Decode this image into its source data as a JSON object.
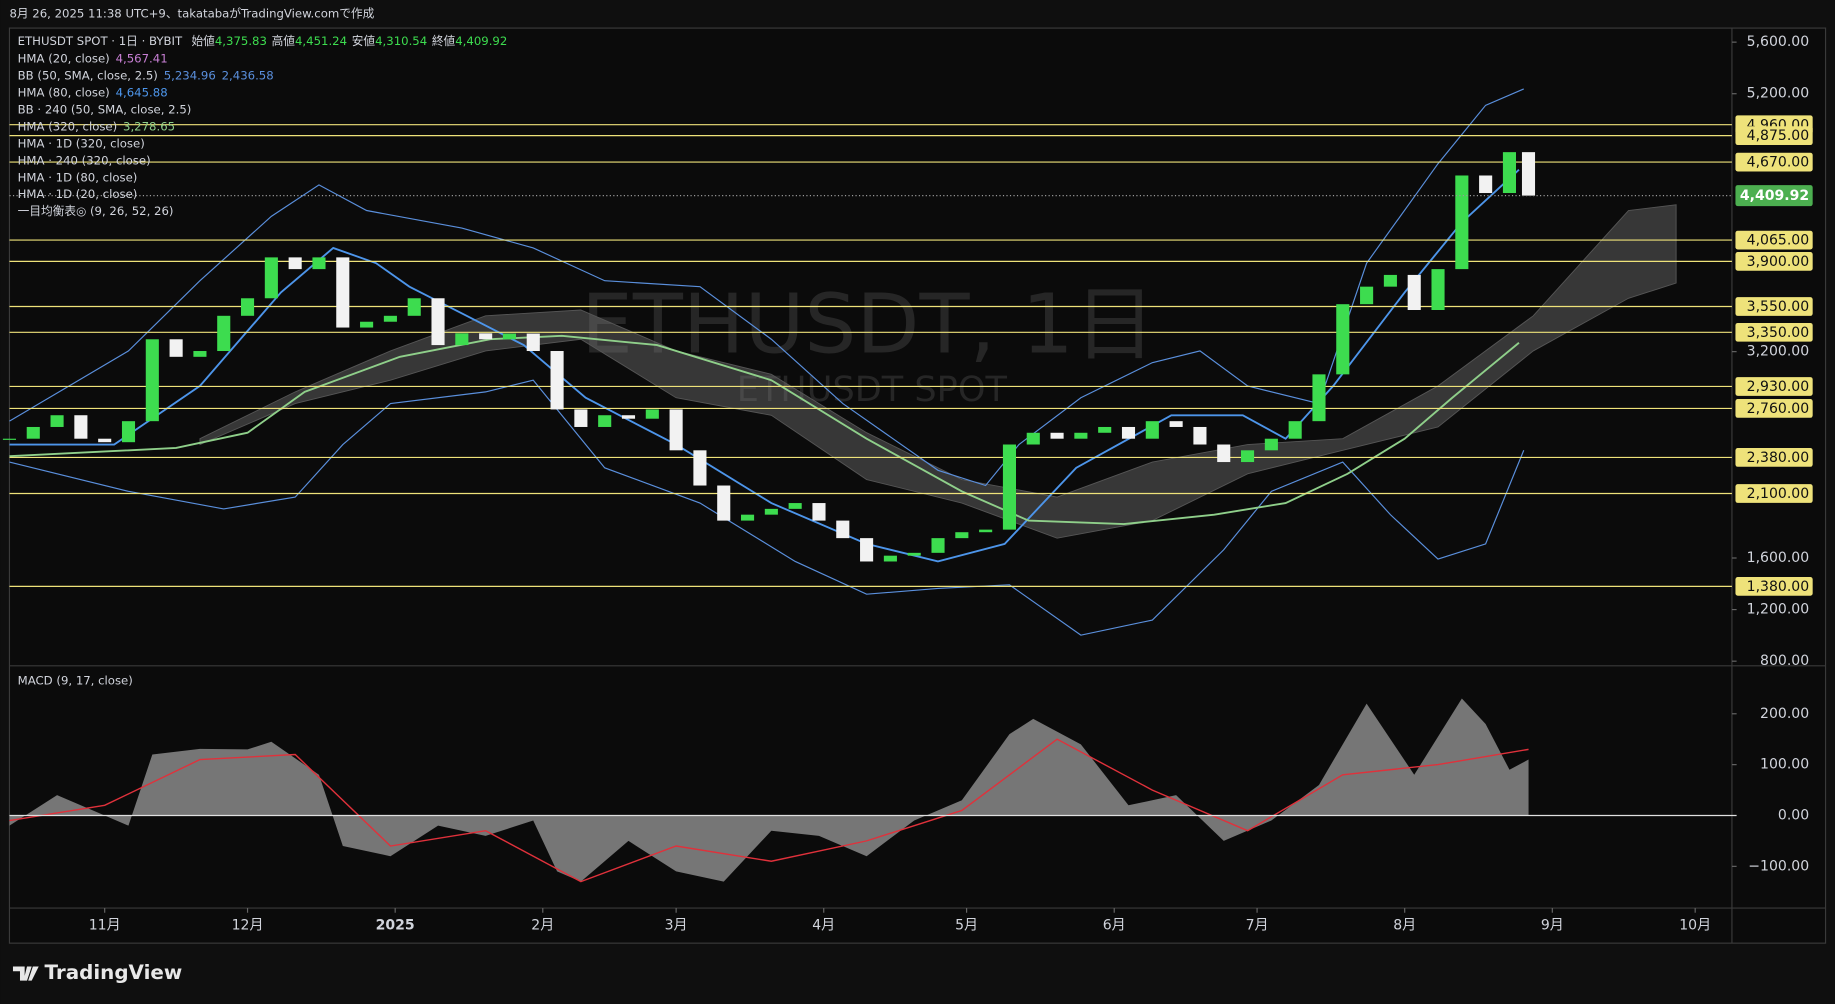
{
  "header": {
    "text": "8月 26, 2025 11:38 UTC+9、takatabaがTradingView.comで作成"
  },
  "footer": {
    "brand": "TradingView"
  },
  "chart_data": {
    "type": "candlestick",
    "symbol": "ETHUSDT SPOT · 1日 · BYBIT",
    "ohlc": [
      {
        "label": "始値",
        "value": "4,375.83"
      },
      {
        "label": "高値",
        "value": "4,451.24"
      },
      {
        "label": "安値",
        "value": "4,310.54"
      },
      {
        "label": "終値",
        "value": "4,409.92"
      }
    ],
    "watermark": "ETHUSDT, 1日",
    "watermark_sub": "ETHUSDT SPOT",
    "up_color": "#3ddc4f",
    "down_color": "#f2f2f2",
    "xlim": [
      0,
      360
    ],
    "xticks": [
      {
        "value": 20,
        "label": "11月"
      },
      {
        "value": 50,
        "label": "12月"
      },
      81,
      {
        "value": 112,
        "label": "2月"
      },
      {
        "value": 140,
        "label": "3月"
      },
      {
        "value": 171,
        "label": "4月"
      },
      {
        "value": 201,
        "label": "5月"
      },
      {
        "value": 232,
        "label": "6月"
      },
      {
        "value": 262,
        "label": "7月"
      },
      {
        "value": 293,
        "label": "8月"
      },
      {
        "value": 324,
        "label": "9月"
      },
      {
        "value": 354,
        "label": "10月"
      }
    ],
    "xtick_year": {
      "value": 81,
      "label": "2025"
    },
    "ylim": [
      773,
      5709
    ],
    "yticks": [
      {
        "value": 5600,
        "label": "5,600.00"
      },
      {
        "value": 5200,
        "label": "5,200.00"
      },
      {
        "value": 3200,
        "label": "3,200.00"
      },
      {
        "value": 1600,
        "label": "1,600.00"
      },
      {
        "value": 1200,
        "label": "1,200.00"
      },
      {
        "value": 800,
        "label": "800.00"
      }
    ],
    "x": [
      0,
      5,
      10,
      15,
      20,
      25,
      30,
      35,
      40,
      45,
      50,
      55,
      60,
      65,
      70,
      75,
      80,
      85,
      90,
      95,
      100,
      105,
      110,
      115,
      120,
      125,
      130,
      135,
      140,
      145,
      150,
      155,
      160,
      165,
      170,
      175,
      180,
      185,
      190,
      195,
      200,
      205,
      210,
      215,
      220,
      225,
      230,
      235,
      240,
      245,
      250,
      255,
      260,
      265,
      270,
      275,
      280,
      285,
      290,
      295,
      300,
      305,
      310,
      315,
      319
    ],
    "values": [
      2525,
      2616,
      2707,
      2525,
      2498,
      2661,
      3296,
      3160,
      3205,
      3478,
      3614,
      3931,
      3840,
      3931,
      3387,
      3432,
      3478,
      3614,
      3251,
      3342,
      3296,
      3340,
      3205,
      2752,
      2616,
      2707,
      2680,
      2752,
      2435,
      2162,
      1890,
      1936,
      1981,
      2026,
      1890,
      1754,
      1573,
      1618,
      1640,
      1754,
      1800,
      1820,
      2480,
      2571,
      2525,
      2571,
      2616,
      2525,
      2661,
      2616,
      2480,
      2344,
      2435,
      2525,
      2661,
      3024,
      3568,
      3704,
      3795,
      3523,
      3840,
      4566,
      4430,
      4747,
      4409.92
    ],
    "last_price": {
      "value": 4409.92,
      "label": "4,409.92"
    },
    "last_price_color": "#4caf50",
    "level_color": "#eee27a",
    "levels": [
      {
        "value": 4960,
        "label": "4,960.00"
      },
      {
        "value": 4875,
        "label": "4,875.00"
      },
      {
        "value": 4670,
        "label": "4,670.00"
      },
      {
        "value": 4065,
        "label": "4,065.00"
      },
      {
        "value": 3900,
        "label": "3,900.00"
      },
      {
        "value": 3550,
        "label": "3,550.00"
      },
      {
        "value": 3350,
        "label": "3,350.00"
      },
      {
        "value": 2930,
        "label": "2,930.00"
      },
      {
        "value": 2760,
        "label": "2,760.00"
      },
      {
        "value": 2380,
        "label": "2,380.00"
      },
      {
        "value": 2100,
        "label": "2,100.00"
      },
      {
        "value": 1380,
        "label": "1,380.00"
      }
    ],
    "legend": [
      {
        "text": "HMA (20, close)",
        "values": [
          "4,567.41"
        ],
        "color": "#c77fd4"
      },
      {
        "text": "BB (50, SMA, close, 2.5)",
        "values": [
          "5,234.96",
          "2,436.58"
        ],
        "color": "#5a8fdc",
        "series": [
          {
            "x": [
              0,
              25,
              40,
              55,
              65,
              75,
              95,
              110,
              125,
              145,
              160,
              175,
              195,
              205,
              212,
              225,
              240,
              250,
              260,
              275,
              285,
              300,
              310,
              318
            ],
            "values": [
              2661,
              3206,
              3750,
              4249,
              4493,
              4294,
              4158,
              4004,
              3750,
              3704,
              3296,
              2797,
              2280,
              2162,
              2480,
              2843,
              3115,
              3206,
              2934,
              2797,
              3886,
              4657,
              5110,
              5237
            ]
          },
          {
            "x": [
              0,
              25,
              45,
              60,
              70,
              80,
              100,
              110,
              125,
              145,
              165,
              180,
              195,
              210,
              225,
              240,
              255,
              265,
              280,
              290,
              300,
              310,
              318
            ],
            "values": [
              2344,
              2117,
              1981,
              2072,
              2480,
              2797,
              2888,
              2979,
              2299,
              2026,
              1573,
              1319,
              1364,
              1392,
              1002,
              1119,
              1664,
              2117,
              2344,
              1936,
              1591,
              1709,
              2435
            ]
          }
        ]
      },
      {
        "text": "HMA (80, close)",
        "values": [
          "4,645.88"
        ],
        "color": "#4d95ea",
        "series": [
          {
            "x": [
              0,
              22,
              40,
              57,
              68,
              77,
              84,
              96,
              108,
              121,
              140,
              160,
              180,
              195,
              209,
              224,
              244,
              259,
              268,
              278,
              293,
              305,
              317
            ],
            "values": [
              2480,
              2480,
              2934,
              3659,
              4004,
              3886,
              3704,
              3478,
              3251,
              2843,
              2480,
              2026,
              1709,
              1573,
              1709,
              2299,
              2707,
              2707,
              2525,
              2934,
              3659,
              4203,
              4611
            ]
          }
        ]
      },
      {
        "text": "BB · 240 (50, SMA, close, 2.5)",
        "values": [],
        "color": "#d1d4dc"
      },
      {
        "text": "HMA (320, close)",
        "values": [
          "3,278.65"
        ],
        "color": "#8fcf8a",
        "series": [
          {
            "x": [
              0,
              35,
              50,
              62,
              82,
              101,
              116,
              136,
              160,
              180,
              200,
              214,
              234,
              253,
              268,
              281,
              293,
              303,
              317
            ],
            "values": [
              2389,
              2453,
              2571,
              2888,
              3160,
              3296,
              3323,
              3251,
              2979,
              2525,
              2117,
              1890,
              1863,
              1936,
              2026,
              2253,
              2525,
              2843,
              3269
            ]
          }
        ]
      },
      {
        "text": "HMA · 1D (320, close)",
        "values": [],
        "color": "#d1d4dc"
      },
      {
        "text": "HMA · 240 (320, close)",
        "values": [],
        "color": "#d1d4dc"
      },
      {
        "text": "HMA · 1D (80, close)",
        "values": [],
        "color": "#d1d4dc"
      },
      {
        "text": "HMA · 1D (20, close)",
        "values": [],
        "color": "#d1d4dc"
      },
      {
        "text": "一目均衡表◎ (9, 26, 52, 26)",
        "values": [],
        "color": "#8a8a8a",
        "cloud": {
          "x": [
            40,
            60,
            80,
            100,
            120,
            140,
            160,
            180,
            200,
            220,
            240,
            260,
            280,
            300,
            320,
            340,
            350
          ],
          "upper": [
            2525,
            2888,
            3206,
            3478,
            3523,
            3206,
            3024,
            2571,
            2208,
            2072,
            2344,
            2480,
            2525,
            2934,
            3478,
            4294,
            4339
          ],
          "lower": [
            2480,
            2797,
            2979,
            3206,
            3296,
            2843,
            2707,
            2208,
            2026,
            1754,
            1890,
            2253,
            2435,
            2616,
            3206,
            3614,
            3732
          ]
        }
      }
    ],
    "macd": {
      "title": "MACD (9, 17, close)",
      "ylim": [
        -182,
        292
      ],
      "yticks": [
        {
          "value": 200,
          "label": "200.00"
        },
        {
          "value": 100,
          "label": "100.00"
        },
        {
          "value": 0,
          "label": "0.00"
        },
        {
          "value": -100,
          "label": "−100.00"
        }
      ],
      "histogram_color": "#8a8a8a",
      "signal_color": "#e0313b",
      "x": [
        0,
        10,
        20,
        25,
        30,
        40,
        50,
        55,
        65,
        70,
        80,
        90,
        100,
        110,
        115,
        120,
        130,
        140,
        150,
        160,
        170,
        180,
        190,
        200,
        210,
        215,
        225,
        235,
        245,
        255,
        265,
        275,
        285,
        295,
        305,
        310,
        315,
        319
      ],
      "histogram": [
        -20,
        40,
        0,
        -20,
        120,
        131,
        130,
        145,
        80,
        -60,
        -80,
        -20,
        -40,
        -10,
        -110,
        -130,
        -50,
        -110,
        -130,
        -30,
        -40,
        -80,
        -10,
        30,
        160,
        190,
        140,
        20,
        40,
        -50,
        -10,
        60,
        220,
        80,
        230,
        180,
        90,
        110
      ],
      "signal_x": [
        0,
        20,
        40,
        60,
        80,
        100,
        120,
        140,
        160,
        180,
        200,
        220,
        240,
        260,
        280,
        300,
        319
      ],
      "signal": [
        -10,
        20,
        110,
        120,
        -60,
        -30,
        -130,
        -60,
        -90,
        -50,
        10,
        150,
        50,
        -30,
        80,
        100,
        130
      ]
    }
  }
}
